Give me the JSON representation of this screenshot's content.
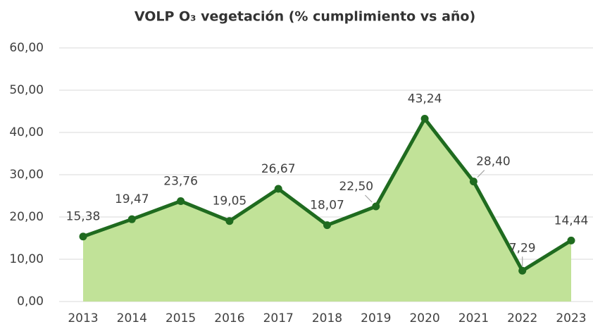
{
  "chart_data": {
    "type": "area",
    "title": "VOLP O₃ vegetación (% cumplimiento vs año)",
    "categories": [
      "2013",
      "2014",
      "2015",
      "2016",
      "2017",
      "2018",
      "2019",
      "2020",
      "2021",
      "2022",
      "2023"
    ],
    "values": [
      15.38,
      19.47,
      23.76,
      19.05,
      26.67,
      18.07,
      22.5,
      43.24,
      28.4,
      7.29,
      14.44
    ],
    "value_labels": [
      "15,38",
      "19,47",
      "23,76",
      "19,05",
      "26,67",
      "18,07",
      "22,50",
      "43,24",
      "28,40",
      "7,29",
      "14,44"
    ],
    "color": "#1f6b1f",
    "fill": "#c1e298",
    "ylim": [
      0,
      60
    ],
    "yticks": [
      {
        "value": 0,
        "label": "0,00"
      },
      {
        "value": 10,
        "label": "10,00"
      },
      {
        "value": 20,
        "label": "20,00"
      },
      {
        "value": 30,
        "label": "30,00"
      },
      {
        "value": 40,
        "label": "40,00"
      },
      {
        "value": 50,
        "label": "50,00"
      },
      {
        "value": 60,
        "label": "60,00"
      }
    ],
    "grid": true
  }
}
